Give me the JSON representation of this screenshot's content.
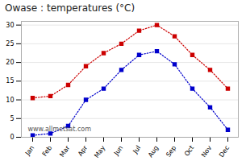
{
  "chart_data": {
    "type": "line",
    "title": "Owase : temperatures (°C)",
    "categories": [
      "Jan",
      "Feb",
      "Mar",
      "Apr",
      "May",
      "Jun",
      "Jul",
      "Aug",
      "Sep",
      "Oct",
      "Nov",
      "Dec"
    ],
    "series": [
      {
        "color": "#cc0000",
        "marker": "square",
        "line_style": "dotted",
        "values": [
          10.5,
          11.0,
          14.0,
          19.0,
          22.5,
          25.0,
          28.5,
          30.0,
          27.0,
          22.0,
          18.0,
          13.0
        ]
      },
      {
        "color": "#0000cc",
        "marker": "square",
        "line_style": "dotted",
        "values": [
          0.5,
          1.0,
          3.0,
          10.0,
          13.0,
          18.0,
          22.0,
          23.0,
          19.5,
          13.0,
          8.0,
          2.0
        ]
      }
    ],
    "ylim": [
      0,
      31
    ],
    "yticks": [
      0,
      5,
      10,
      15,
      20,
      25,
      30
    ],
    "grid": "y",
    "annotation": "www.allmetsat.com"
  }
}
